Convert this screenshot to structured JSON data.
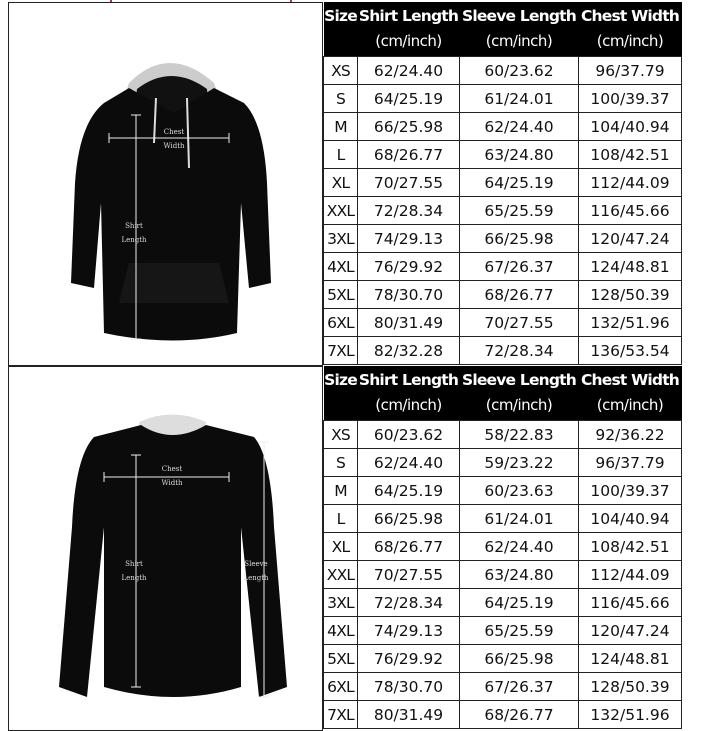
{
  "header": {
    "size": "Size",
    "shirt_length": "Shirt Length",
    "sleeve_length": "Sleeve Length",
    "chest_width": "Chest Width",
    "unit": "(cm/inch)"
  },
  "hoodie": {
    "labels": {
      "chest_width": "Chest Width",
      "shirt_length": "Shirt Length"
    },
    "rows": [
      [
        "XS",
        "62/24.40",
        "60/23.62",
        "96/37.79"
      ],
      [
        "S",
        "64/25.19",
        "61/24.01",
        "100/39.37"
      ],
      [
        "M",
        "66/25.98",
        "62/24.40",
        "104/40.94"
      ],
      [
        "L",
        "68/26.77",
        "63/24.80",
        "108/42.51"
      ],
      [
        "XL",
        "70/27.55",
        "64/25.19",
        "112/44.09"
      ],
      [
        "XXL",
        "72/28.34",
        "65/25.59",
        "116/45.66"
      ],
      [
        "3XL",
        "74/29.13",
        "66/25.98",
        "120/47.24"
      ],
      [
        "4XL",
        "76/29.92",
        "67/26.37",
        "124/48.81"
      ],
      [
        "5XL",
        "78/30.70",
        "68/26.77",
        "128/50.39"
      ],
      [
        "6XL",
        "80/31.49",
        "70/27.55",
        "132/51.96"
      ],
      [
        "7XL",
        "82/32.28",
        "72/28.34",
        "136/53.54"
      ]
    ]
  },
  "sweatshirt": {
    "labels": {
      "chest_width": "Chest Width",
      "shirt_length": "Shirt Length",
      "sleeve_length": "Sleeve Length"
    },
    "rows": [
      [
        "XS",
        "60/23.62",
        "58/22.83",
        "92/36.22"
      ],
      [
        "S",
        "62/24.40",
        "59/23.22",
        "96/37.79"
      ],
      [
        "M",
        "64/25.19",
        "60/23.63",
        "100/39.37"
      ],
      [
        "L",
        "66/25.98",
        "61/24.01",
        "104/40.94"
      ],
      [
        "XL",
        "68/26.77",
        "62/24.40",
        "108/42.51"
      ],
      [
        "XXL",
        "70/27.55",
        "63/24.80",
        "112/44.09"
      ],
      [
        "3XL",
        "72/28.34",
        "64/25.19",
        "116/45.66"
      ],
      [
        "4XL",
        "74/29.13",
        "65/25.59",
        "120/47.24"
      ],
      [
        "5XL",
        "76/29.92",
        "66/25.98",
        "124/48.81"
      ],
      [
        "6XL",
        "78/30.70",
        "67/26.37",
        "128/50.39"
      ],
      [
        "7XL",
        "80/31.49",
        "68/26.77",
        "132/51.96"
      ]
    ]
  },
  "colors": {
    "garment": "#0b0b0b",
    "header_bg": "#000000",
    "accent_red": "#c0304a"
  }
}
